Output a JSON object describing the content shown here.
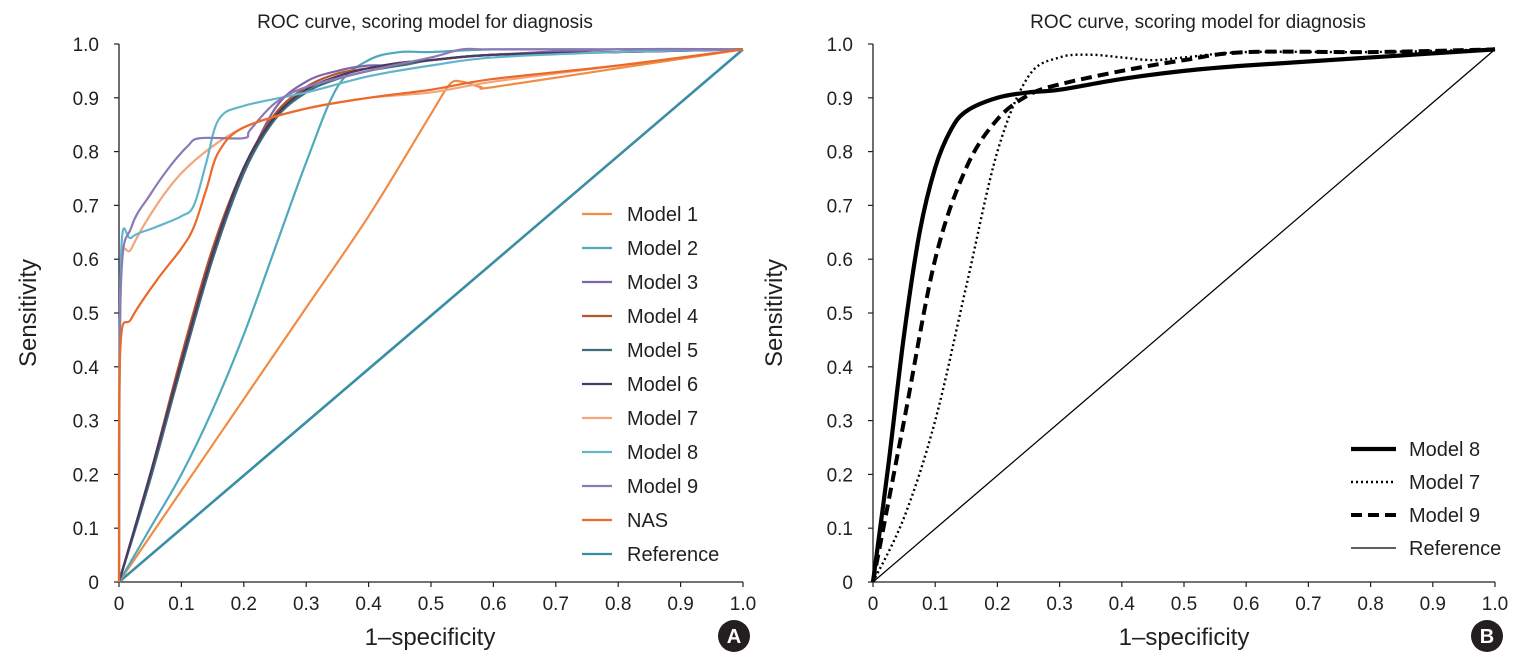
{
  "chart_data": [
    {
      "panel": "A",
      "type": "line",
      "title": "ROC curve, scoring model for diagnosis",
      "xlabel": "1–specificity",
      "ylabel": "Sensitivity",
      "xlim": [
        0,
        1.0
      ],
      "ylim": [
        0,
        1.0
      ],
      "xticks": [
        "0",
        "0.1",
        "0.2",
        "0.3",
        "0.4",
        "0.5",
        "0.6",
        "0.7",
        "0.8",
        "0.9",
        "1.0"
      ],
      "yticks": [
        "0",
        "0.1",
        "0.2",
        "0.3",
        "0.4",
        "0.5",
        "0.6",
        "0.7",
        "0.8",
        "0.9",
        "1.0"
      ],
      "legend_position": "right",
      "series": [
        {
          "name": "Model 1",
          "color": "#f08c45",
          "x": [
            0,
            0.1,
            0.2,
            0.3,
            0.4,
            0.5,
            0.53,
            0.55,
            0.58,
            0.6,
            0.8,
            1.0
          ],
          "y": [
            0,
            0.17,
            0.34,
            0.51,
            0.68,
            0.87,
            0.925,
            0.93,
            0.92,
            0.92,
            0.955,
            0.99
          ]
        },
        {
          "name": "Model 2",
          "color": "#4fa9bd",
          "x": [
            0,
            0.05,
            0.1,
            0.15,
            0.2,
            0.25,
            0.3,
            0.35,
            0.4,
            0.45,
            0.5,
            0.6,
            0.8,
            1.0
          ],
          "y": [
            0,
            0.1,
            0.2,
            0.32,
            0.46,
            0.62,
            0.78,
            0.92,
            0.97,
            0.985,
            0.985,
            0.99,
            0.99,
            0.99
          ]
        },
        {
          "name": "Model 3",
          "color": "#7e64a8",
          "x": [
            0,
            0.05,
            0.1,
            0.15,
            0.2,
            0.25,
            0.3,
            0.35,
            0.4,
            0.45,
            0.5,
            0.6,
            0.8,
            1.0
          ],
          "y": [
            0,
            0.2,
            0.4,
            0.6,
            0.76,
            0.88,
            0.93,
            0.95,
            0.96,
            0.96,
            0.97,
            0.98,
            0.99,
            0.99
          ]
        },
        {
          "name": "Model 4",
          "color": "#b5562a",
          "x": [
            0,
            0.05,
            0.1,
            0.15,
            0.2,
            0.25,
            0.3,
            0.35,
            0.4,
            0.45,
            0.5,
            0.6,
            0.8,
            1.0
          ],
          "y": [
            0,
            0.2,
            0.42,
            0.62,
            0.77,
            0.87,
            0.92,
            0.945,
            0.955,
            0.965,
            0.97,
            0.98,
            0.985,
            0.99
          ]
        },
        {
          "name": "Model 5",
          "color": "#3d6e78",
          "x": [
            0,
            0.05,
            0.1,
            0.15,
            0.2,
            0.25,
            0.3,
            0.35,
            0.4,
            0.45,
            0.5,
            0.6,
            0.8,
            1.0
          ],
          "y": [
            0,
            0.19,
            0.4,
            0.6,
            0.76,
            0.86,
            0.91,
            0.935,
            0.95,
            0.96,
            0.97,
            0.98,
            0.985,
            0.99
          ]
        },
        {
          "name": "Model 6",
          "color": "#4a3a63",
          "x": [
            0,
            0.05,
            0.1,
            0.15,
            0.2,
            0.25,
            0.3,
            0.35,
            0.4,
            0.45,
            0.5,
            0.6,
            0.8,
            1.0
          ],
          "y": [
            0,
            0.2,
            0.41,
            0.61,
            0.77,
            0.865,
            0.915,
            0.94,
            0.955,
            0.965,
            0.97,
            0.98,
            0.985,
            0.99
          ]
        },
        {
          "name": "Model 7",
          "color": "#f4a57a",
          "x": [
            0,
            0.003,
            0.02,
            0.06,
            0.1,
            0.15,
            0.2,
            0.25,
            0.3,
            0.4,
            0.5,
            0.6,
            0.8,
            1.0
          ],
          "y": [
            0,
            0.56,
            0.62,
            0.7,
            0.76,
            0.81,
            0.845,
            0.865,
            0.88,
            0.9,
            0.91,
            0.93,
            0.96,
            0.99
          ]
        },
        {
          "name": "Model 8",
          "color": "#62b5cb",
          "x": [
            0,
            0.003,
            0.02,
            0.06,
            0.1,
            0.12,
            0.14,
            0.16,
            0.2,
            0.3,
            0.4,
            0.5,
            0.6,
            0.8,
            1.0
          ],
          "y": [
            0,
            0.6,
            0.64,
            0.66,
            0.68,
            0.7,
            0.78,
            0.86,
            0.885,
            0.91,
            0.94,
            0.96,
            0.975,
            0.985,
            0.99
          ]
        },
        {
          "name": "Model 9",
          "color": "#8c7ab5",
          "x": [
            0,
            0.003,
            0.02,
            0.05,
            0.08,
            0.11,
            0.13,
            0.2,
            0.21,
            0.25,
            0.3,
            0.4,
            0.5,
            0.55,
            0.6,
            0.8,
            1.0
          ],
          "y": [
            0,
            0.55,
            0.66,
            0.72,
            0.77,
            0.81,
            0.825,
            0.825,
            0.84,
            0.89,
            0.92,
            0.95,
            0.975,
            0.99,
            0.99,
            0.99,
            0.99
          ]
        },
        {
          "name": "NAS",
          "color": "#ea6a2a",
          "x": [
            0,
            0.002,
            0.02,
            0.06,
            0.1,
            0.12,
            0.14,
            0.16,
            0.2,
            0.3,
            0.4,
            0.5,
            0.6,
            0.8,
            1.0
          ],
          "y": [
            0,
            0.43,
            0.49,
            0.56,
            0.62,
            0.66,
            0.73,
            0.8,
            0.845,
            0.88,
            0.9,
            0.915,
            0.935,
            0.96,
            0.99
          ]
        },
        {
          "name": "Reference",
          "color": "#3a8ea3",
          "x": [
            0,
            1.0
          ],
          "y": [
            0,
            0.99
          ]
        }
      ],
      "badge": "A"
    },
    {
      "panel": "B",
      "type": "line",
      "title": "ROC curve, scoring model for diagnosis",
      "xlabel": "1–specificity",
      "ylabel": "Sensitivity",
      "xlim": [
        0,
        1.0
      ],
      "ylim": [
        0,
        1.0
      ],
      "xticks": [
        "0",
        "0.1",
        "0.2",
        "0.3",
        "0.4",
        "0.5",
        "0.6",
        "0.7",
        "0.8",
        "0.9",
        "1.0"
      ],
      "yticks": [
        "0",
        "0.1",
        "0.2",
        "0.3",
        "0.4",
        "0.5",
        "0.6",
        "0.7",
        "0.8",
        "0.9",
        "1.0"
      ],
      "legend_position": "bottom-right",
      "series": [
        {
          "name": "Model 8",
          "color": "#000000",
          "style": "solid-bold",
          "x": [
            0,
            0.025,
            0.05,
            0.075,
            0.1,
            0.125,
            0.15,
            0.2,
            0.25,
            0.3,
            0.4,
            0.5,
            0.6,
            0.8,
            1.0
          ],
          "y": [
            0,
            0.22,
            0.46,
            0.65,
            0.77,
            0.84,
            0.875,
            0.9,
            0.91,
            0.915,
            0.935,
            0.95,
            0.96,
            0.975,
            0.99
          ]
        },
        {
          "name": "Model 7",
          "color": "#000000",
          "style": "dotted",
          "x": [
            0,
            0.05,
            0.1,
            0.15,
            0.2,
            0.25,
            0.3,
            0.35,
            0.4,
            0.45,
            0.5,
            0.6,
            0.8,
            1.0
          ],
          "y": [
            0,
            0.12,
            0.3,
            0.55,
            0.8,
            0.94,
            0.975,
            0.98,
            0.975,
            0.97,
            0.975,
            0.985,
            0.985,
            0.99
          ]
        },
        {
          "name": "Model 9",
          "color": "#000000",
          "style": "dashed-bold",
          "x": [
            0,
            0.05,
            0.1,
            0.15,
            0.2,
            0.25,
            0.3,
            0.4,
            0.5,
            0.6,
            0.8,
            1.0
          ],
          "y": [
            0,
            0.3,
            0.6,
            0.77,
            0.86,
            0.905,
            0.925,
            0.95,
            0.97,
            0.985,
            0.985,
            0.99
          ]
        },
        {
          "name": "Reference",
          "color": "#000000",
          "style": "thin",
          "x": [
            0,
            1.0
          ],
          "y": [
            0,
            0.99
          ]
        }
      ],
      "badge": "B"
    }
  ]
}
